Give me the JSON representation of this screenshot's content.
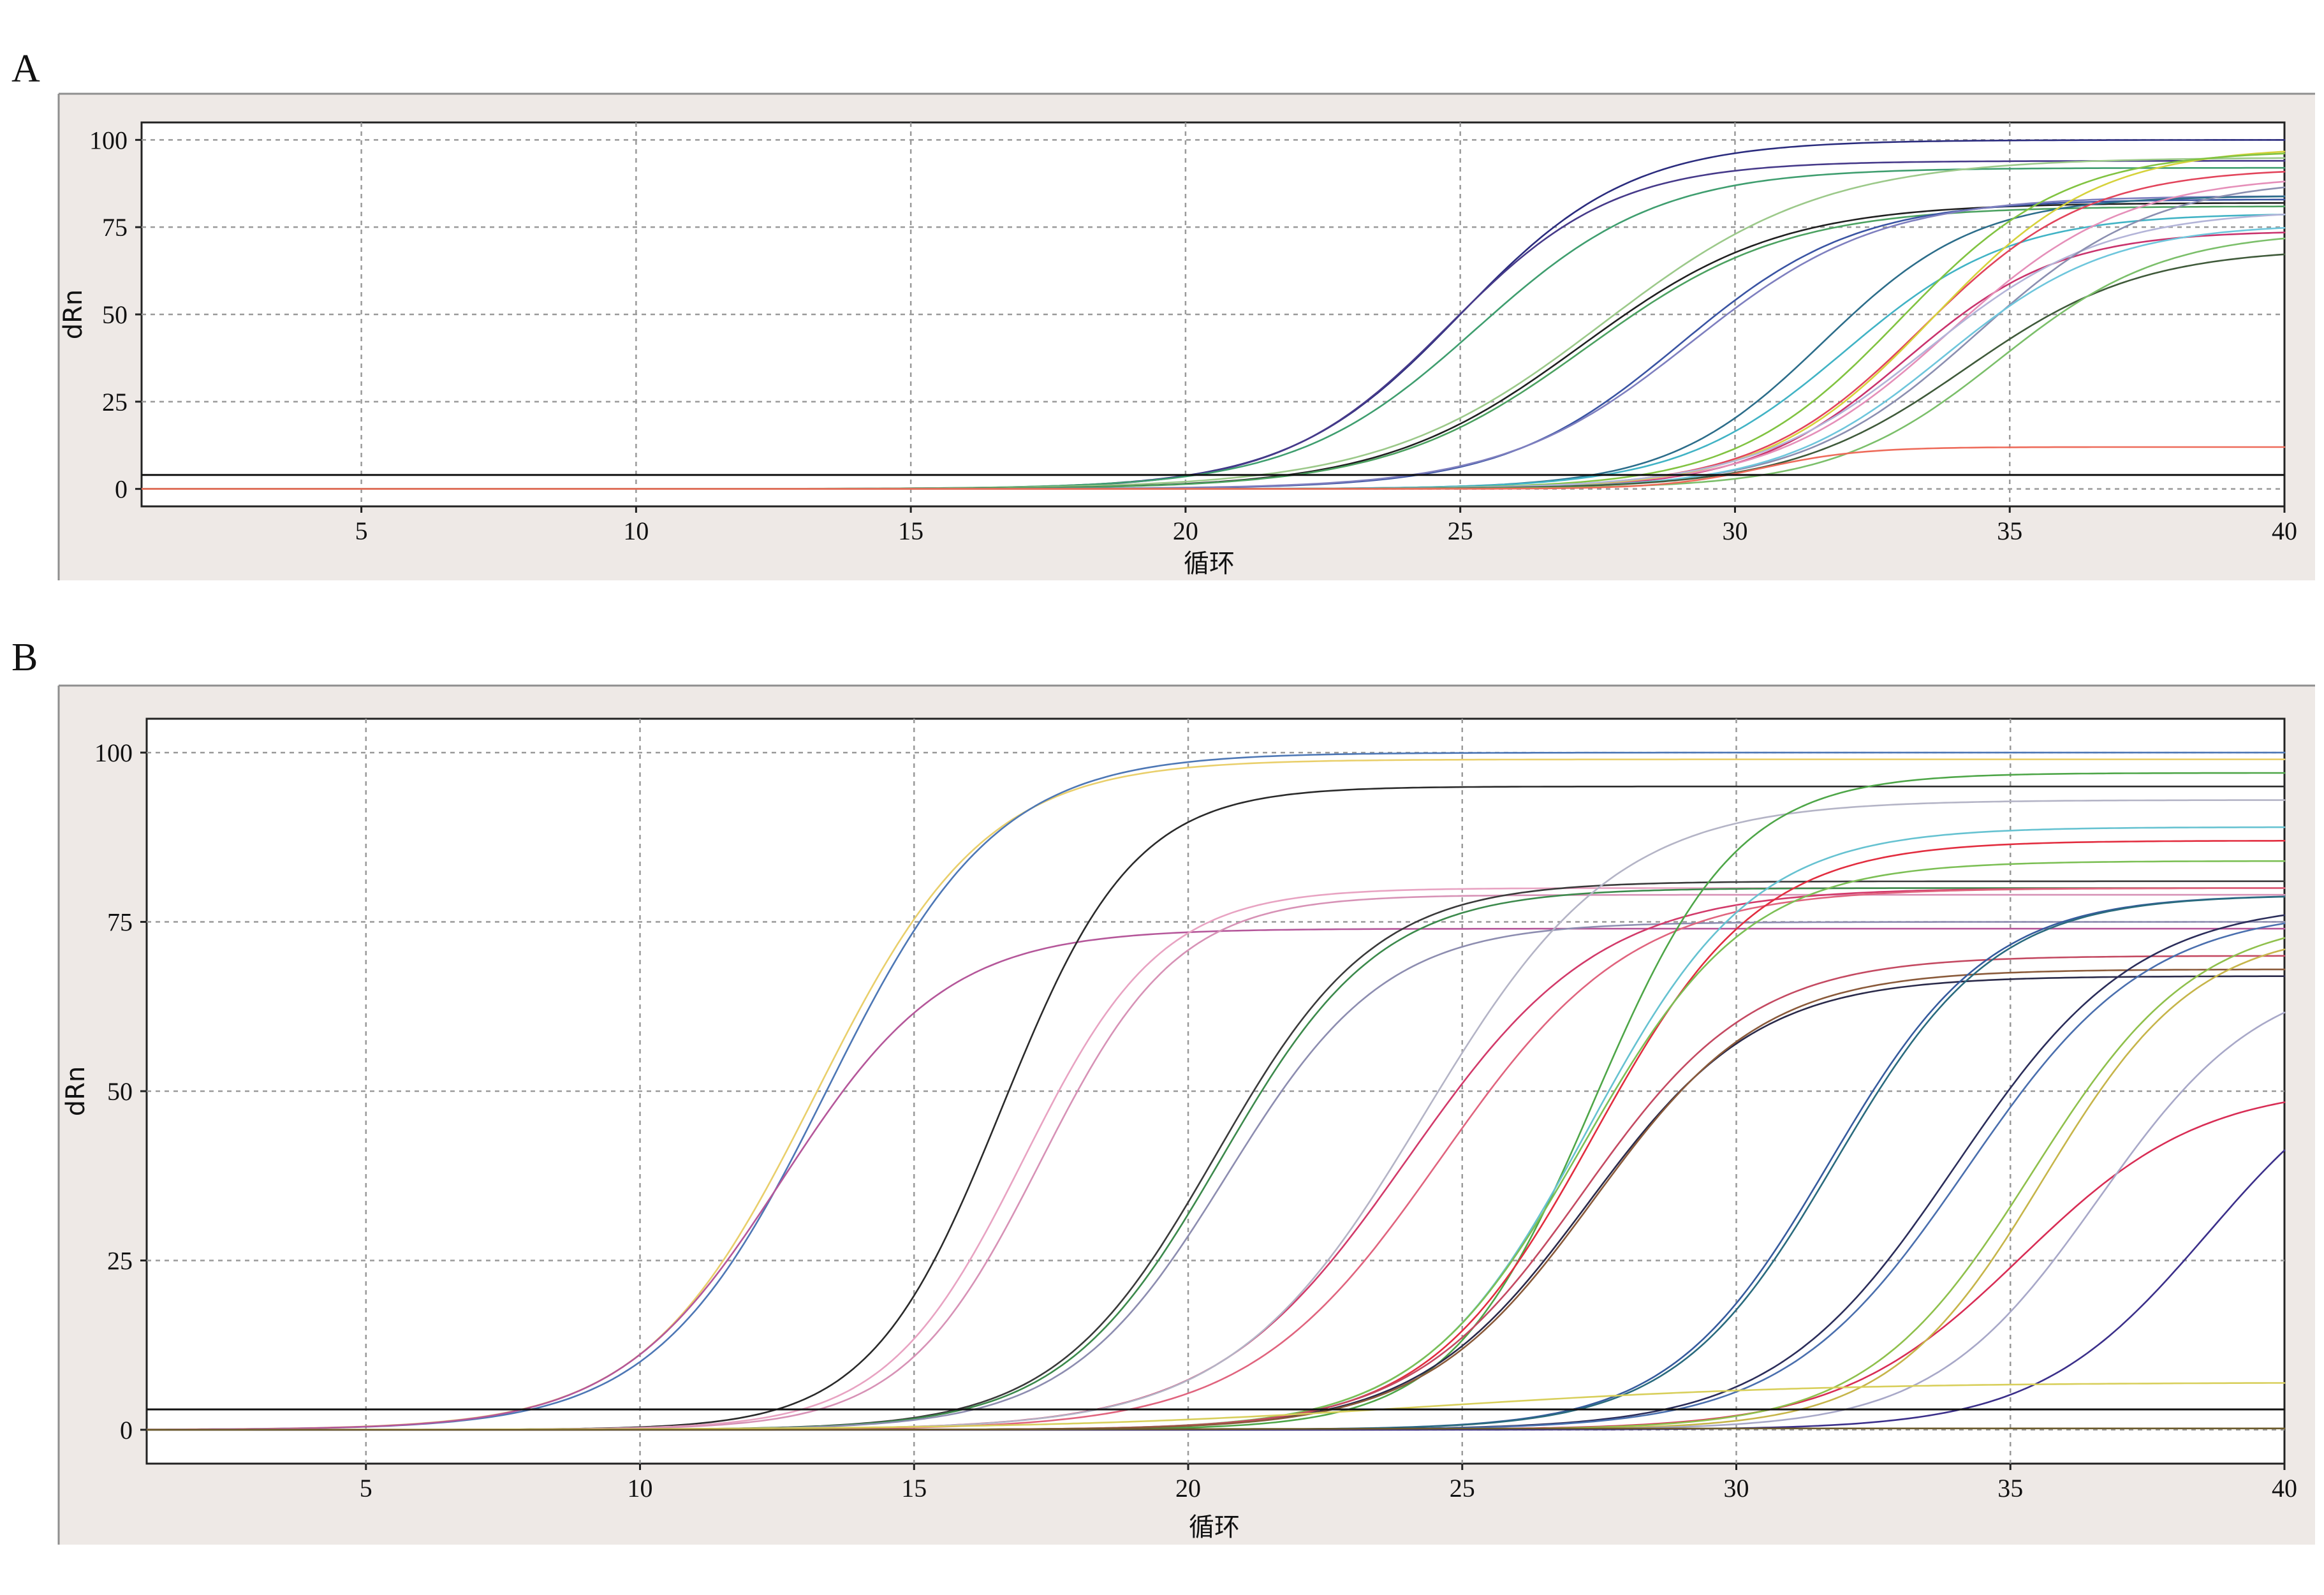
{
  "chart_data": [
    {
      "panel": "A",
      "type": "line",
      "xlabel": "循环",
      "ylabel": "dRn",
      "xlim": [
        1,
        40
      ],
      "ylim": [
        -5,
        105
      ],
      "x_ticks": [
        5,
        10,
        15,
        20,
        25,
        30,
        35,
        40
      ],
      "y_ticks": [
        0,
        25,
        50,
        75,
        100
      ],
      "grid": true,
      "threshold": 4,
      "series": [
        {
          "color": "#2b2c7e",
          "plateau": 100,
          "midpoint": 25.0,
          "slope": 1.55
        },
        {
          "color": "#463a8a",
          "plateau": 94,
          "midpoint": 24.8,
          "slope": 1.5
        },
        {
          "color": "#3f9e6f",
          "plateau": 92,
          "midpoint": 25.3,
          "slope": 1.65
        },
        {
          "color": "#9cc98a",
          "plateau": 95,
          "midpoint": 27.6,
          "slope": 2.0
        },
        {
          "color": "#202020",
          "plateau": 82,
          "midpoint": 27.2,
          "slope": 1.8
        },
        {
          "color": "#4ba160",
          "plateau": 81,
          "midpoint": 27.3,
          "slope": 1.8
        },
        {
          "color": "#3a54a3",
          "plateau": 83,
          "midpoint": 29.0,
          "slope": 1.6
        },
        {
          "color": "#7e7fbf",
          "plateau": 84,
          "midpoint": 29.2,
          "slope": 1.7
        },
        {
          "color": "#2c6d8a",
          "plateau": 84,
          "midpoint": 31.6,
          "slope": 1.4
        },
        {
          "color": "#41b3c5",
          "plateau": 79,
          "midpoint": 32.0,
          "slope": 1.5
        },
        {
          "color": "#e2445b",
          "plateau": 92,
          "midpoint": 33.4,
          "slope": 1.5
        },
        {
          "color": "#c9336d",
          "plateau": 74,
          "midpoint": 33.1,
          "slope": 1.4
        },
        {
          "color": "#e58fb9",
          "plateau": 90,
          "midpoint": 33.9,
          "slope": 1.6
        },
        {
          "color": "#d6d23b",
          "plateau": 98,
          "midpoint": 33.6,
          "slope": 1.5
        },
        {
          "color": "#81c341",
          "plateau": 97,
          "midpoint": 33.0,
          "slope": 1.5
        },
        {
          "color": "#b3b4d8",
          "plateau": 80,
          "midpoint": 33.5,
          "slope": 1.6
        },
        {
          "color": "#8b8fb0",
          "plateau": 89,
          "midpoint": 34.4,
          "slope": 1.6
        },
        {
          "color": "#6ec6dc",
          "plateau": 76,
          "midpoint": 33.8,
          "slope": 1.5
        },
        {
          "color": "#3f5a3a",
          "plateau": 69,
          "midpoint": 34.2,
          "slope": 1.6
        },
        {
          "color": "#7bbf6a",
          "plateau": 74,
          "midpoint": 34.8,
          "slope": 1.5
        },
        {
          "color": "#ee6b5a",
          "plateau": 12,
          "midpoint": 30.5,
          "slope": 0.9
        }
      ]
    },
    {
      "panel": "B",
      "type": "line",
      "xlabel": "循环",
      "ylabel": "dRn",
      "xlim": [
        1,
        40
      ],
      "ylim": [
        -5,
        105
      ],
      "x_ticks": [
        5,
        10,
        15,
        20,
        25,
        30,
        35,
        40
      ],
      "y_ticks": [
        0,
        25,
        50,
        75,
        100
      ],
      "grid": true,
      "threshold": 3,
      "series": [
        {
          "color": "#e9cf6b",
          "plateau": 99,
          "midpoint": 13.2,
          "slope": 1.55
        },
        {
          "color": "#4d77b5",
          "plateau": 100,
          "midpoint": 13.4,
          "slope": 1.55
        },
        {
          "color": "#b5579a",
          "plateau": 74,
          "midpoint": 12.6,
          "slope": 1.5
        },
        {
          "color": "#2a2a2a",
          "plateau": 95,
          "midpoint": 16.6,
          "slope": 1.2
        },
        {
          "color": "#e8a3c2",
          "plateau": 80,
          "midpoint": 17.0,
          "slope": 1.25
        },
        {
          "color": "#d792b6",
          "plateau": 79,
          "midpoint": 17.3,
          "slope": 1.25
        },
        {
          "color": "#3a3a3a",
          "plateau": 81,
          "midpoint": 20.5,
          "slope": 1.45
        },
        {
          "color": "#3c8a4c",
          "plateau": 80,
          "midpoint": 20.6,
          "slope": 1.45
        },
        {
          "color": "#8d8db0",
          "plateau": 75,
          "midpoint": 20.7,
          "slope": 1.45
        },
        {
          "color": "#d23a6a",
          "plateau": 80,
          "midpoint": 24.0,
          "slope": 1.75
        },
        {
          "color": "#b4b4c6",
          "plateau": 93,
          "midpoint": 24.3,
          "slope": 1.75
        },
        {
          "color": "#e0647e",
          "plateau": 80,
          "midpoint": 24.6,
          "slope": 1.75
        },
        {
          "color": "#4ea648",
          "plateau": 97,
          "midpoint": 27.4,
          "slope": 1.3
        },
        {
          "color": "#e22d3f",
          "plateau": 87,
          "midpoint": 27.4,
          "slope": 1.5
        },
        {
          "color": "#66c2d1",
          "plateau": 89,
          "midpoint": 27.3,
          "slope": 1.5
        },
        {
          "color": "#7cbf55",
          "plateau": 84,
          "midpoint": 27.2,
          "slope": 1.5
        },
        {
          "color": "#2a2a4a",
          "plateau": 67,
          "midpoint": 27.3,
          "slope": 1.55
        },
        {
          "color": "#c44a62",
          "plateau": 70,
          "midpoint": 27.2,
          "slope": 1.55
        },
        {
          "color": "#8a5a3a",
          "plateau": 68,
          "midpoint": 27.4,
          "slope": 1.55
        },
        {
          "color": "#365b9e",
          "plateau": 79,
          "midpoint": 31.7,
          "slope": 1.45
        },
        {
          "color": "#2a6b7e",
          "plateau": 79,
          "midpoint": 31.8,
          "slope": 1.45
        },
        {
          "color": "#2b2d5a",
          "plateau": 78,
          "midpoint": 34.0,
          "slope": 1.65
        },
        {
          "color": "#4a6fae",
          "plateau": 77,
          "midpoint": 34.2,
          "slope": 1.65
        },
        {
          "color": "#d82d55",
          "plateau": 51,
          "midpoint": 35.2,
          "slope": 1.65
        },
        {
          "color": "#8fc04c",
          "plateau": 76,
          "midpoint": 35.4,
          "slope": 1.5
        },
        {
          "color": "#c6b54a",
          "plateau": 74,
          "midpoint": 35.6,
          "slope": 1.4
        },
        {
          "color": "#a8a8c8",
          "plateau": 68,
          "midpoint": 36.6,
          "slope": 1.5
        },
        {
          "color": "#3b2f8a",
          "plateau": 58,
          "midpoint": 38.6,
          "slope": 1.55
        },
        {
          "color": "#d8cf5b",
          "plateau": 7,
          "midpoint": 24.5,
          "slope": 3.5
        },
        {
          "color": "#6b5a2a",
          "plateau": 0.2,
          "midpoint": 20.0,
          "slope": 3.0
        }
      ]
    }
  ],
  "panels": [
    {
      "letter": "A",
      "xlabel": "循环",
      "ylabel": "dRn"
    },
    {
      "letter": "B",
      "xlabel": "循环",
      "ylabel": "dRn"
    }
  ]
}
